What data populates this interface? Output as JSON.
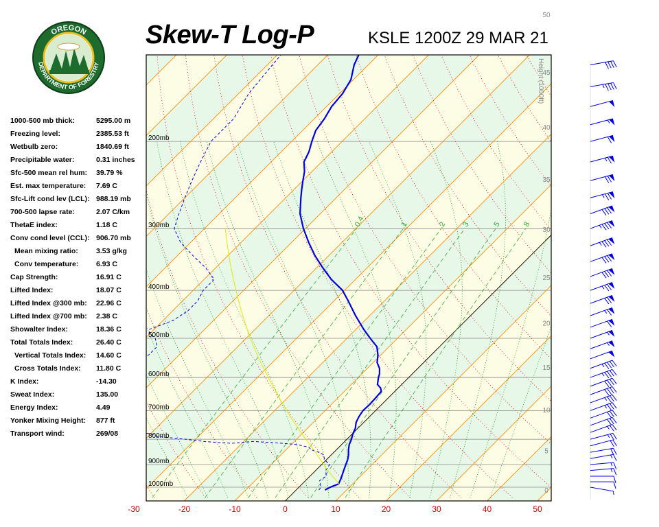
{
  "header": {
    "title": "Skew-T Log-P",
    "station": "KSLE 1200Z 29 MAR 21"
  },
  "logo": {
    "top_text": "OREGON",
    "bottom_text": "DEPARTMENT OF FORESTRY"
  },
  "indices": [
    {
      "label": "1000-500 mb thick:",
      "value": "5295.00 m",
      "indent": false
    },
    {
      "label": "Freezing level:",
      "value": "2385.53 ft",
      "indent": false
    },
    {
      "label": "Wetbulb zero:",
      "value": "1840.69 ft",
      "indent": false
    },
    {
      "label": "Precipitable water:",
      "value": "0.31 inches",
      "indent": false
    },
    {
      "label": "Sfc-500 mean rel hum:",
      "value": "39.79 %",
      "indent": false
    },
    {
      "label": "Est. max temperature:",
      "value": "7.69 C",
      "indent": false
    },
    {
      "label": "Sfc-Lift cond lev (LCL):",
      "value": "988.19 mb",
      "indent": false
    },
    {
      "label": "700-500 lapse rate:",
      "value": "2.07 C/km",
      "indent": false
    },
    {
      "label": "ThetaE index:",
      "value": "1.18 C",
      "indent": false
    },
    {
      "label": "Conv cond level (CCL):",
      "value": "906.70 mb",
      "indent": false
    },
    {
      "label": "Mean mixing ratio:",
      "value": "3.53 g/kg",
      "indent": true
    },
    {
      "label": "Conv temperature:",
      "value": "6.93 C",
      "indent": true
    },
    {
      "label": "Cap Strength:",
      "value": "16.91 C",
      "indent": false
    },
    {
      "label": "Lifted Index:",
      "value": "18.07 C",
      "indent": false
    },
    {
      "label": "Lifted Index @300 mb:",
      "value": "22.96 C",
      "indent": false
    },
    {
      "label": "Lifted Index @700 mb:",
      "value": "2.38 C",
      "indent": false
    },
    {
      "label": "Showalter Index:",
      "value": "18.36 C",
      "indent": false
    },
    {
      "label": "Total Totals Index:",
      "value": "26.40 C",
      "indent": false
    },
    {
      "label": "Vertical Totals Index:",
      "value": "14.60 C",
      "indent": true
    },
    {
      "label": "Cross Totals Index:",
      "value": "11.80 C",
      "indent": true
    },
    {
      "label": "K Index:",
      "value": "-14.30",
      "indent": false
    },
    {
      "label": "Sweat Index:",
      "value": "135.00",
      "indent": false
    },
    {
      "label": "Energy Index:",
      "value": "4.49",
      "indent": false
    },
    {
      "label": "Yonker Mixing Height:",
      "value": "877 ft",
      "indent": false
    },
    {
      "label": "Transport wind:",
      "value": "269/08",
      "indent": false
    }
  ],
  "colors": {
    "temperature": "#0000dd",
    "dewpoint": "#0000dd",
    "parcel": "#e6e600",
    "isotherm": "#ff8c00",
    "dry_adiabat": "#dd0000",
    "moist_adiabat": "#009900",
    "mixing_ratio": "#33aa33",
    "band_green": "#e8f8e8",
    "band_yellow": "#fdfde6",
    "axis_label": "#cc0000",
    "height_label": "#888888",
    "wind_barb": "#0000dd"
  },
  "chart_data": {
    "type": "line",
    "title": "Skew-T Log-P",
    "xlabel": "",
    "ylabel": "",
    "xlim": [
      -30,
      50
    ],
    "ylim_pressure_mb": [
      1050,
      100
    ],
    "x_ticks": [
      "-30",
      "-20",
      "-10",
      "0",
      "10",
      "20",
      "30",
      "40",
      "50"
    ],
    "pressure_levels": [
      {
        "p": 200,
        "label": "200mb"
      },
      {
        "p": 300,
        "label": "300mb"
      },
      {
        "p": 400,
        "label": "400mb"
      },
      {
        "p": 500,
        "label": "500mb"
      },
      {
        "p": 600,
        "label": "600mb"
      },
      {
        "p": 700,
        "label": "700mb"
      },
      {
        "p": 800,
        "label": "800mb"
      },
      {
        "p": 900,
        "label": "900mb"
      },
      {
        "p": 1000,
        "label": "1000mb"
      }
    ],
    "height_axis": {
      "title": "Height (1000ft)",
      "labels": [
        "0",
        "5",
        "10",
        "15",
        "20",
        "25",
        "30",
        "35",
        "40",
        "45",
        "50"
      ]
    },
    "mixing_ratio_labels": [
      "0.4",
      "1",
      "2",
      "3",
      "5",
      "8"
    ],
    "series": [
      {
        "kind": "temperature",
        "points": [
          [
            1013,
            5.7
          ],
          [
            1000,
            6.2
          ],
          [
            985,
            7.2
          ],
          [
            960,
            6.6
          ],
          [
            940,
            6.0
          ],
          [
            920,
            5.4
          ],
          [
            900,
            4.8
          ],
          [
            880,
            4.2
          ],
          [
            860,
            3.4
          ],
          [
            840,
            2.4
          ],
          [
            820,
            1.5
          ],
          [
            800,
            0.9
          ],
          [
            780,
            0.1
          ],
          [
            760,
            -0.5
          ],
          [
            740,
            -1.5
          ],
          [
            720,
            -2.1
          ],
          [
            700,
            -2.5
          ],
          [
            680,
            -2.4
          ],
          [
            660,
            -2.5
          ],
          [
            640,
            -2.7
          ],
          [
            630,
            -3.5
          ],
          [
            620,
            -4.8
          ],
          [
            600,
            -6.0
          ],
          [
            590,
            -6.5
          ],
          [
            575,
            -7.6
          ],
          [
            560,
            -9.2
          ],
          [
            540,
            -10.6
          ],
          [
            520,
            -12.4
          ],
          [
            500,
            -15.4
          ],
          [
            480,
            -18.4
          ],
          [
            450,
            -22.8
          ],
          [
            420,
            -27.2
          ],
          [
            400,
            -30.4
          ],
          [
            380,
            -34.8
          ],
          [
            360,
            -38.8
          ],
          [
            340,
            -42.8
          ],
          [
            320,
            -46.6
          ],
          [
            300,
            -50.4
          ],
          [
            280,
            -54.0
          ],
          [
            260,
            -57.0
          ],
          [
            250,
            -58.5
          ],
          [
            240,
            -60.0
          ],
          [
            230,
            -61.5
          ],
          [
            220,
            -63.5
          ],
          [
            210,
            -64.5
          ],
          [
            200,
            -66.0
          ],
          [
            190,
            -67.4
          ],
          [
            180,
            -68.0
          ],
          [
            170,
            -69.0
          ],
          [
            160,
            -69.4
          ],
          [
            150,
            -70.5
          ],
          [
            140,
            -72.8
          ],
          [
            130,
            -74.5
          ],
          [
            120,
            -76.2
          ],
          [
            110,
            -77.8
          ]
        ]
      },
      {
        "kind": "dewpoint",
        "points": [
          [
            1013,
            4.5
          ],
          [
            1000,
            4.4
          ],
          [
            970,
            2.8
          ],
          [
            950,
            3.2
          ],
          [
            925,
            2.0
          ],
          [
            900,
            1.6
          ],
          [
            880,
            -0.4
          ],
          [
            860,
            -1.5
          ],
          [
            850,
            -3.0
          ],
          [
            840,
            -5.0
          ],
          [
            830,
            -6.0
          ],
          [
            820,
            -8.8
          ],
          [
            815,
            -12.0
          ],
          [
            812,
            -15.0
          ],
          [
            808,
            -18.0
          ],
          [
            815,
            -22.0
          ],
          [
            812,
            -25.0
          ],
          [
            808,
            -28.0
          ],
          [
            800,
            -32.0
          ],
          [
            790,
            -38.0
          ],
          [
            780,
            -40.0
          ],
          [
            770,
            -45.0
          ],
          [
            760,
            -50.0
          ],
          [
            745,
            -52.0
          ],
          [
            730,
            -52.0
          ],
          [
            700,
            -54.0
          ],
          [
            690,
            -56.0
          ],
          [
            670,
            -56.0
          ],
          [
            650,
            -60.0
          ],
          [
            630,
            -62.0
          ],
          [
            610,
            -64.0
          ],
          [
            600,
            -65.0
          ],
          [
            590,
            -62.0
          ],
          [
            580,
            -60.0
          ],
          [
            560,
            -58.0
          ],
          [
            540,
            -56.0
          ],
          [
            520,
            -56.0
          ],
          [
            500,
            -58.0
          ],
          [
            490,
            -60.0
          ],
          [
            480,
            -61.0
          ],
          [
            460,
            -58.0
          ],
          [
            440,
            -57.0
          ],
          [
            420,
            -57.0
          ],
          [
            400,
            -58.0
          ],
          [
            380,
            -58.0
          ],
          [
            360,
            -62.0
          ],
          [
            340,
            -67.0
          ],
          [
            320,
            -72.0
          ],
          [
            300,
            -76.0
          ],
          [
            280,
            -78.0
          ],
          [
            260,
            -80.0
          ],
          [
            240,
            -82.0
          ],
          [
            220,
            -84.0
          ],
          [
            200,
            -86.0
          ],
          [
            180,
            -86.0
          ],
          [
            160,
            -88.0
          ],
          [
            140,
            -89.0
          ],
          [
            120,
            -90.0
          ],
          [
            110,
            -90.5
          ]
        ]
      },
      {
        "kind": "parcel",
        "points": [
          [
            990,
            7.7
          ],
          [
            960,
            5.3
          ],
          [
            930,
            2.8
          ],
          [
            900,
            0.4
          ],
          [
            870,
            -2.0
          ],
          [
            840,
            -4.5
          ],
          [
            810,
            -7.2
          ],
          [
            780,
            -10.0
          ],
          [
            750,
            -12.8
          ],
          [
            720,
            -15.7
          ],
          [
            700,
            -17.6
          ],
          [
            670,
            -20.6
          ],
          [
            640,
            -23.6
          ],
          [
            610,
            -26.8
          ],
          [
            580,
            -30.0
          ],
          [
            550,
            -33.4
          ],
          [
            520,
            -36.8
          ],
          [
            500,
            -39.2
          ],
          [
            470,
            -42.7
          ],
          [
            440,
            -46.4
          ],
          [
            410,
            -50.2
          ],
          [
            380,
            -54.2
          ],
          [
            350,
            -58.4
          ],
          [
            320,
            -62.8
          ],
          [
            300,
            -65.9
          ]
        ]
      }
    ],
    "wind_barbs": [
      {
        "p": 1000,
        "dir": 280,
        "spd": 5
      },
      {
        "p": 975,
        "dir": 270,
        "spd": 10
      },
      {
        "p": 950,
        "dir": 270,
        "spd": 10
      },
      {
        "p": 925,
        "dir": 265,
        "spd": 15
      },
      {
        "p": 900,
        "dir": 265,
        "spd": 15
      },
      {
        "p": 875,
        "dir": 260,
        "spd": 15
      },
      {
        "p": 850,
        "dir": 260,
        "spd": 20
      },
      {
        "p": 825,
        "dir": 255,
        "spd": 20
      },
      {
        "p": 800,
        "dir": 255,
        "spd": 25
      },
      {
        "p": 775,
        "dir": 250,
        "spd": 25
      },
      {
        "p": 750,
        "dir": 250,
        "spd": 30
      },
      {
        "p": 725,
        "dir": 250,
        "spd": 30
      },
      {
        "p": 700,
        "dir": 250,
        "spd": 35
      },
      {
        "p": 675,
        "dir": 250,
        "spd": 35
      },
      {
        "p": 650,
        "dir": 250,
        "spd": 40
      },
      {
        "p": 625,
        "dir": 250,
        "spd": 40
      },
      {
        "p": 600,
        "dir": 250,
        "spd": 45
      },
      {
        "p": 575,
        "dir": 250,
        "spd": 45
      },
      {
        "p": 550,
        "dir": 250,
        "spd": 50
      },
      {
        "p": 525,
        "dir": 250,
        "spd": 55
      },
      {
        "p": 500,
        "dir": 250,
        "spd": 55
      },
      {
        "p": 475,
        "dir": 250,
        "spd": 60
      },
      {
        "p": 450,
        "dir": 250,
        "spd": 65
      },
      {
        "p": 425,
        "dir": 250,
        "spd": 70
      },
      {
        "p": 400,
        "dir": 250,
        "spd": 75
      },
      {
        "p": 375,
        "dir": 250,
        "spd": 80
      },
      {
        "p": 350,
        "dir": 250,
        "spd": 80
      },
      {
        "p": 325,
        "dir": 250,
        "spd": 85
      },
      {
        "p": 300,
        "dir": 250,
        "spd": 85
      },
      {
        "p": 280,
        "dir": 250,
        "spd": 80
      },
      {
        "p": 260,
        "dir": 255,
        "spd": 75
      },
      {
        "p": 240,
        "dir": 255,
        "spd": 70
      },
      {
        "p": 220,
        "dir": 255,
        "spd": 65
      },
      {
        "p": 200,
        "dir": 255,
        "spd": 60
      },
      {
        "p": 185,
        "dir": 255,
        "spd": 55
      },
      {
        "p": 170,
        "dir": 255,
        "spd": 50
      },
      {
        "p": 155,
        "dir": 260,
        "spd": 45
      },
      {
        "p": 140,
        "dir": 260,
        "spd": 40
      },
      {
        "p": 125,
        "dir": 260,
        "spd": 30
      },
      {
        "p": 115,
        "dir": 260,
        "spd": 20
      }
    ]
  }
}
